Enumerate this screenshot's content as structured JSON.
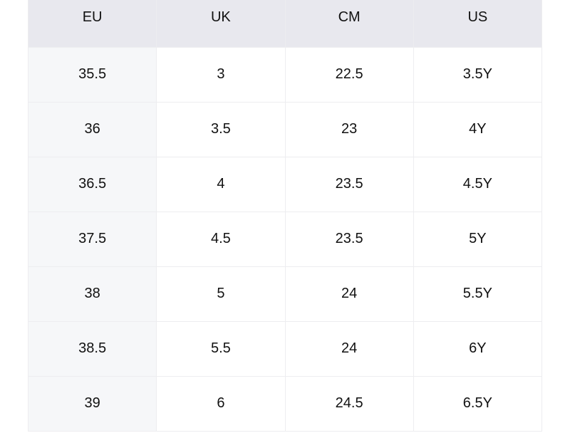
{
  "table": {
    "header": [
      "EU",
      "UK",
      "CM",
      "US"
    ],
    "rows": [
      [
        "35.5",
        "3",
        "22.5",
        "3.5Y"
      ],
      [
        "36",
        "3.5",
        "23",
        "4Y"
      ],
      [
        "36.5",
        "4",
        "23.5",
        "4.5Y"
      ],
      [
        "37.5",
        "4.5",
        "23.5",
        "5Y"
      ],
      [
        "38",
        "5",
        "24",
        "5.5Y"
      ],
      [
        "38.5",
        "5.5",
        "24",
        "6Y"
      ],
      [
        "39",
        "6",
        "24.5",
        "6.5Y"
      ]
    ]
  }
}
